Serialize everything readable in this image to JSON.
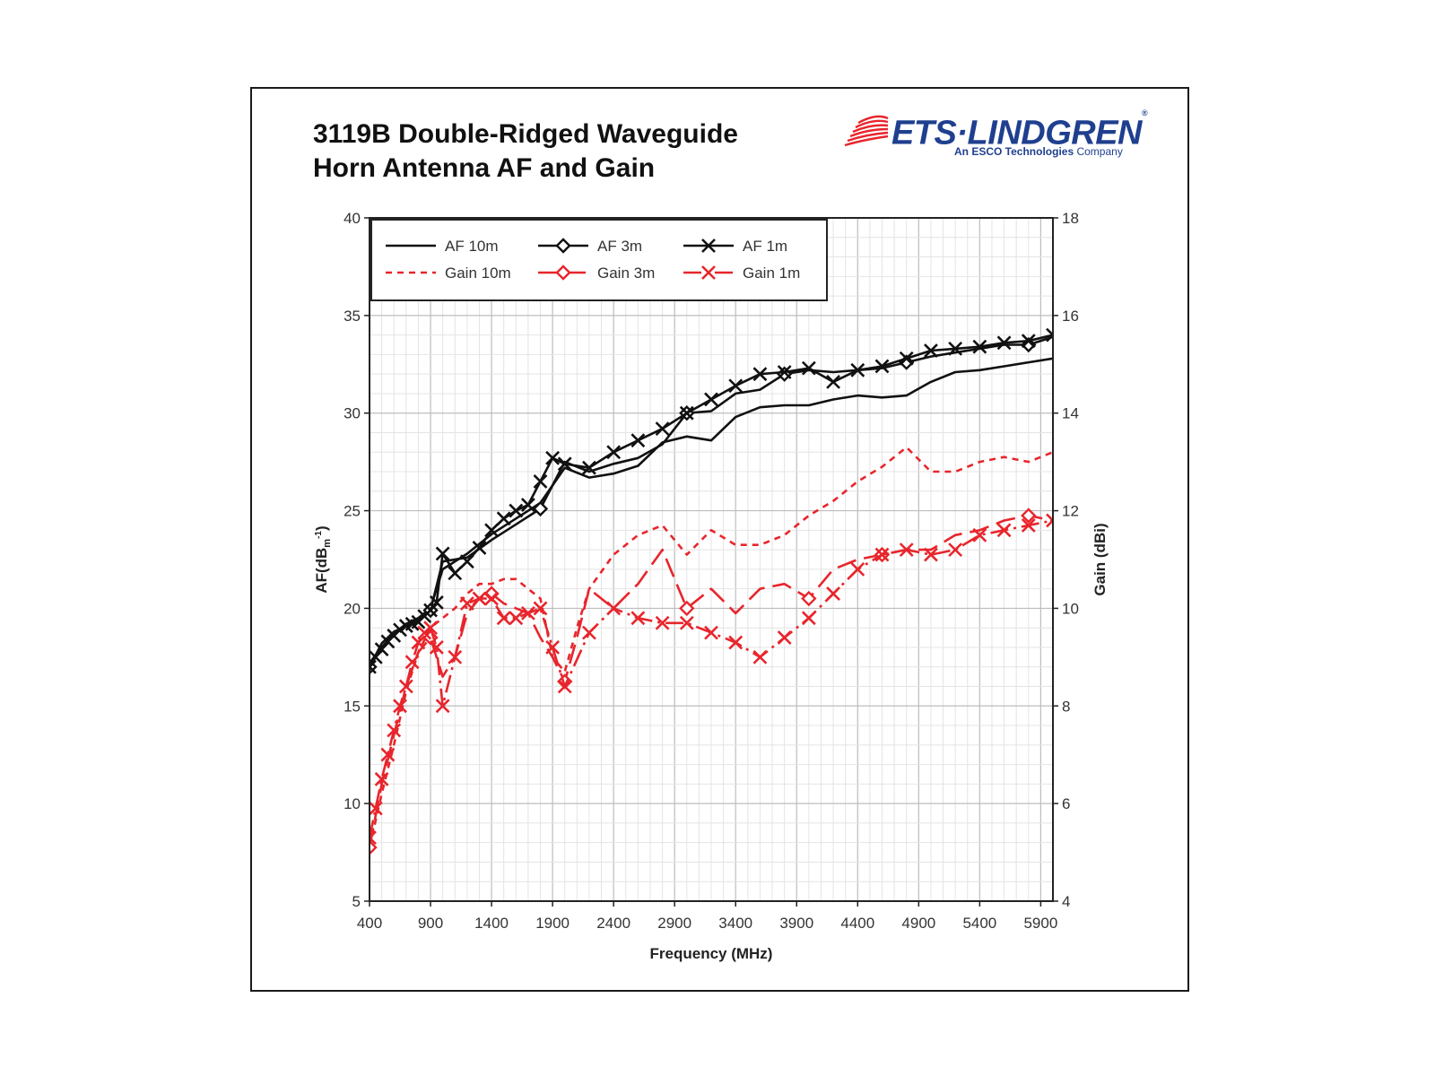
{
  "title_lines": [
    "3119B Double-Ridged Waveguide",
    "Horn Antenna AF and Gain"
  ],
  "logo": {
    "brand": "ETS·LINDGREN",
    "registered": "®",
    "tagline_bold": "An ESCO Technologies",
    "tagline_rest": " Company",
    "color": "#1f3f8f",
    "stripe_color": "#e8252c"
  },
  "chart_data": {
    "type": "line",
    "xlabel": "Frequency (MHz)",
    "ylabel_left": "AF(dB",
    "ylabel_left_sub": "m",
    "ylabel_left_sup": "-1",
    "ylabel_left_close": ")",
    "ylabel_right": "Gain (dBi)",
    "xlim": [
      400,
      6000
    ],
    "x_ticks": [
      400,
      900,
      1400,
      1900,
      2400,
      2900,
      3400,
      3900,
      4400,
      4900,
      5400,
      5900
    ],
    "ylim_left": [
      5,
      40
    ],
    "y_ticks_left": [
      5,
      10,
      15,
      20,
      25,
      30,
      35,
      40
    ],
    "ylim_right": [
      4,
      18
    ],
    "y_ticks_right": [
      4,
      6,
      8,
      10,
      12,
      14,
      16,
      18
    ],
    "grid": true,
    "legend_position": "top-left",
    "series": [
      {
        "name": "AF 10m",
        "axis": "left",
        "color": "#111111",
        "dash": "solid",
        "marker": "none",
        "x": [
          400,
          500,
          600,
          700,
          800,
          900,
          1000,
          1200,
          1400,
          1600,
          1800,
          2000,
          2200,
          2400,
          2600,
          2800,
          3000,
          3200,
          3400,
          3600,
          3800,
          4000,
          4200,
          4400,
          4600,
          4800,
          5000,
          5200,
          5400,
          5600,
          5800,
          6000
        ],
        "y": [
          17.2,
          18.0,
          18.7,
          19.2,
          19.5,
          20.0,
          22.0,
          22.8,
          23.8,
          24.6,
          25.4,
          27.2,
          26.7,
          26.9,
          27.3,
          28.5,
          28.8,
          28.6,
          29.8,
          30.3,
          30.4,
          30.4,
          30.7,
          30.9,
          30.8,
          30.9,
          31.6,
          32.1,
          32.2,
          32.4,
          32.6,
          32.8
        ]
      },
      {
        "name": "AF 3m",
        "axis": "left",
        "color": "#111111",
        "dash": "solid",
        "marker": "diamond",
        "x": [
          400,
          500,
          600,
          700,
          800,
          900,
          1000,
          1200,
          1400,
          1600,
          1800,
          2000,
          2200,
          2400,
          2600,
          2800,
          3000,
          3200,
          3400,
          3600,
          3800,
          4000,
          4200,
          4400,
          4600,
          4800,
          5000,
          5200,
          5400,
          5600,
          5800,
          6000
        ],
        "y": [
          17.0,
          18.2,
          18.8,
          19.1,
          19.4,
          19.9,
          22.4,
          22.6,
          23.5,
          24.3,
          25.1,
          27.5,
          27.0,
          27.4,
          27.7,
          28.4,
          30.0,
          30.1,
          31.0,
          31.2,
          32.0,
          32.2,
          32.1,
          32.2,
          32.3,
          32.6,
          32.9,
          33.1,
          33.3,
          33.5,
          33.5,
          33.9
        ]
      },
      {
        "name": "AF 1m",
        "axis": "left",
        "color": "#111111",
        "dash": "solid",
        "marker": "x",
        "x": [
          400,
          450,
          500,
          550,
          600,
          650,
          700,
          750,
          800,
          850,
          900,
          950,
          1000,
          1100,
          1200,
          1300,
          1400,
          1500,
          1600,
          1700,
          1800,
          1900,
          2000,
          2200,
          2400,
          2600,
          2800,
          3000,
          3200,
          3400,
          3600,
          3800,
          4000,
          4200,
          4400,
          4600,
          4800,
          5000,
          5200,
          5400,
          5600,
          5800,
          6000
        ],
        "y": [
          17.0,
          17.5,
          17.9,
          18.3,
          18.6,
          18.9,
          19.1,
          19.2,
          19.3,
          19.6,
          19.9,
          20.3,
          22.8,
          21.8,
          22.4,
          23.1,
          24.0,
          24.6,
          25.0,
          25.3,
          26.5,
          27.7,
          27.4,
          27.2,
          28.0,
          28.6,
          29.2,
          30.0,
          30.7,
          31.4,
          32.0,
          32.1,
          32.3,
          31.6,
          32.2,
          32.4,
          32.8,
          33.2,
          33.3,
          33.4,
          33.6,
          33.7,
          34.0
        ]
      },
      {
        "name": "Gain 10m",
        "axis": "right",
        "color": "#e8252c",
        "dash": "short",
        "marker": "none",
        "x": [
          400,
          500,
          600,
          700,
          800,
          900,
          1000,
          1100,
          1200,
          1300,
          1400,
          1500,
          1600,
          1700,
          1800,
          1900,
          2000,
          2100,
          2200,
          2400,
          2600,
          2800,
          3000,
          3200,
          3400,
          3600,
          3800,
          4000,
          4200,
          4400,
          4600,
          4800,
          5000,
          5200,
          5400,
          5600,
          5800,
          6000
        ],
        "y": [
          5.1,
          6.2,
          7.2,
          8.3,
          9.1,
          9.6,
          9.8,
          10.0,
          10.3,
          10.5,
          10.5,
          10.6,
          10.6,
          10.4,
          10.2,
          9.0,
          8.7,
          9.6,
          10.4,
          11.1,
          11.5,
          11.7,
          11.1,
          11.6,
          11.3,
          11.3,
          11.5,
          11.9,
          12.2,
          12.6,
          12.9,
          13.3,
          12.8,
          12.8,
          13.0,
          13.1,
          13.0,
          13.2
        ]
      },
      {
        "name": "Gain 3m",
        "axis": "right",
        "color": "#e8252c",
        "dash": "long",
        "marker": "diamond",
        "x": [
          400,
          500,
          600,
          700,
          800,
          900,
          1000,
          1100,
          1200,
          1300,
          1400,
          1500,
          1600,
          1700,
          1800,
          1900,
          2000,
          2100,
          2200,
          2400,
          2600,
          2800,
          3000,
          3200,
          3400,
          3600,
          3800,
          4000,
          4200,
          4400,
          4600,
          4800,
          5000,
          5200,
          5400,
          5600,
          5800,
          6000
        ],
        "y": [
          5.1,
          6.4,
          7.4,
          8.4,
          9.1,
          9.4,
          8.6,
          9.0,
          9.9,
          10.2,
          10.3,
          10.1,
          10.0,
          9.9,
          9.4,
          9.0,
          8.5,
          9.4,
          10.4,
          10.0,
          10.5,
          11.2,
          10.0,
          10.4,
          9.9,
          10.4,
          10.5,
          10.2,
          10.8,
          11.0,
          11.1,
          11.2,
          11.2,
          11.5,
          11.6,
          11.8,
          11.9,
          11.8
        ]
      },
      {
        "name": "Gain 1m",
        "axis": "right",
        "color": "#e8252c",
        "dash": "dashdot",
        "marker": "x",
        "x": [
          400,
          450,
          500,
          550,
          600,
          650,
          700,
          750,
          800,
          850,
          900,
          950,
          1000,
          1100,
          1200,
          1300,
          1400,
          1500,
          1600,
          1700,
          1800,
          1900,
          2000,
          2200,
          2400,
          2600,
          2800,
          3000,
          3200,
          3400,
          3600,
          3800,
          4000,
          4200,
          4400,
          4600,
          4800,
          5000,
          5200,
          5400,
          5600,
          5800,
          6000
        ],
        "y": [
          5.3,
          5.9,
          6.5,
          7.0,
          7.5,
          8.0,
          8.4,
          8.9,
          9.3,
          9.5,
          9.6,
          9.2,
          8.0,
          9.0,
          10.1,
          10.2,
          10.2,
          9.8,
          9.8,
          9.9,
          10.0,
          9.2,
          8.4,
          9.5,
          10.0,
          9.8,
          9.7,
          9.7,
          9.5,
          9.3,
          9.0,
          9.4,
          9.8,
          10.3,
          10.8,
          11.1,
          11.2,
          11.1,
          11.2,
          11.5,
          11.6,
          11.7,
          11.8
        ]
      }
    ]
  }
}
